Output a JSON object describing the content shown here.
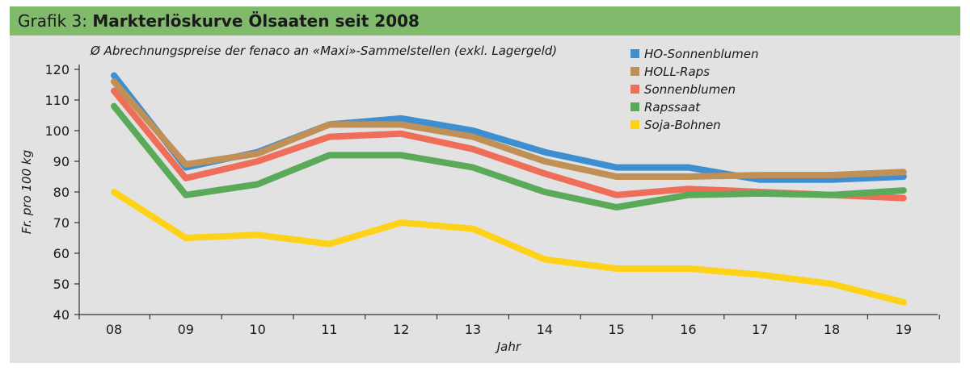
{
  "header": {
    "prefix": "Grafik 3: ",
    "title": "Markterlöskurve Ölsaaten seit 2008"
  },
  "chart_data": {
    "type": "line",
    "subtitle": "Ø Abrechnungspreise der fenaco an «Maxi»-Sammelstellen (exkl. Lagergeld)",
    "xlabel": "Jahr",
    "ylabel": "Fr. pro 100 kg",
    "categories": [
      "08",
      "09",
      "10",
      "11",
      "12",
      "13",
      "14",
      "15",
      "16",
      "17",
      "18",
      "19"
    ],
    "ylim": [
      40,
      120
    ],
    "yticks": [
      40,
      50,
      60,
      70,
      80,
      90,
      100,
      110,
      120
    ],
    "grid": false,
    "legend_position": "top-right",
    "series": [
      {
        "name": "HO-Sonnenblumen",
        "color": "#3d8fd1",
        "values": [
          118,
          88,
          93,
          102,
          104,
          100,
          93,
          88,
          88,
          84,
          84,
          85
        ]
      },
      {
        "name": "HOLL-Raps",
        "color": "#c09056",
        "values": [
          116,
          89,
          92.5,
          102,
          102,
          98,
          90,
          85,
          85,
          85.5,
          85.5,
          86.5
        ]
      },
      {
        "name": "Sonnenblumen",
        "color": "#ef6e5a",
        "values": [
          113,
          84.5,
          90,
          98,
          99,
          94,
          86,
          79,
          81,
          80,
          79,
          78
        ]
      },
      {
        "name": "Rapssaat",
        "color": "#5aaa5a",
        "values": [
          108,
          79,
          82.5,
          92,
          92,
          88,
          80,
          75,
          79,
          79.5,
          79,
          80.5
        ]
      },
      {
        "name": "Soja-Bohnen",
        "color": "#ffd21a",
        "values": [
          80,
          65,
          66,
          63,
          70,
          68,
          58,
          55,
          55,
          53,
          50,
          44
        ]
      }
    ]
  }
}
